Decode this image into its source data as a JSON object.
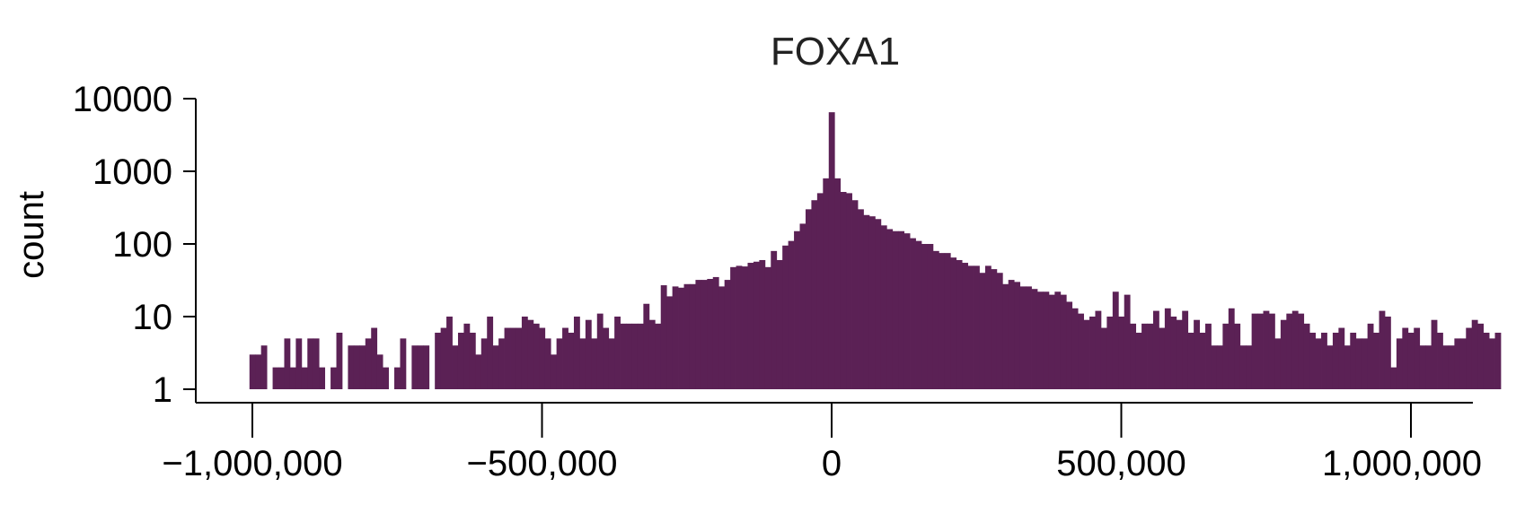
{
  "chart_data": {
    "type": "bar",
    "title": "FOXA1",
    "xlabel": "",
    "ylabel": "count",
    "y_scale": "log",
    "ylim": [
      1,
      10000
    ],
    "xlim": [
      -1000000,
      1000000
    ],
    "bin_width": 10000,
    "grid": false,
    "legend": "none",
    "bar_color": "#5b2155",
    "x_ticks": [
      -1000000,
      -500000,
      0,
      500000,
      1000000
    ],
    "x_tick_labels": [
      "−1,000,000",
      "−500,000",
      "0",
      "500,000",
      "1,000,000"
    ],
    "y_ticks": [
      1,
      10,
      100,
      1000,
      10000
    ],
    "y_tick_labels": [
      "1",
      "10",
      "100",
      "1000",
      "10000"
    ],
    "bins": [
      [
        -1000000,
        3
      ],
      [
        -990000,
        3
      ],
      [
        -980000,
        4
      ],
      [
        -960000,
        2
      ],
      [
        -950000,
        2
      ],
      [
        -940000,
        5
      ],
      [
        -930000,
        2
      ],
      [
        -920000,
        5
      ],
      [
        -910000,
        2
      ],
      [
        -900000,
        5
      ],
      [
        -890000,
        5
      ],
      [
        -880000,
        2
      ],
      [
        -860000,
        2
      ],
      [
        -850000,
        6
      ],
      [
        -830000,
        4
      ],
      [
        -820000,
        4
      ],
      [
        -810000,
        4
      ],
      [
        -800000,
        5
      ],
      [
        -790000,
        7
      ],
      [
        -780000,
        3
      ],
      [
        -770000,
        2
      ],
      [
        -750000,
        2
      ],
      [
        -740000,
        5
      ],
      [
        -720000,
        4
      ],
      [
        -710000,
        4
      ],
      [
        -700000,
        4
      ],
      [
        -680000,
        6
      ],
      [
        -670000,
        7
      ],
      [
        -660000,
        10
      ],
      [
        -650000,
        4
      ],
      [
        -640000,
        6
      ],
      [
        -630000,
        8
      ],
      [
        -620000,
        6
      ],
      [
        -610000,
        3
      ],
      [
        -600000,
        5
      ],
      [
        -590000,
        10
      ],
      [
        -580000,
        4
      ],
      [
        -570000,
        5
      ],
      [
        -560000,
        7
      ],
      [
        -550000,
        7
      ],
      [
        -540000,
        7
      ],
      [
        -530000,
        10
      ],
      [
        -520000,
        9
      ],
      [
        -510000,
        8
      ],
      [
        -500000,
        7
      ],
      [
        -490000,
        5
      ],
      [
        -480000,
        3
      ],
      [
        -470000,
        5
      ],
      [
        -460000,
        7
      ],
      [
        -450000,
        6
      ],
      [
        -440000,
        10
      ],
      [
        -430000,
        5
      ],
      [
        -420000,
        9
      ],
      [
        -410000,
        5
      ],
      [
        -400000,
        11
      ],
      [
        -390000,
        7
      ],
      [
        -380000,
        5
      ],
      [
        -370000,
        10
      ],
      [
        -360000,
        8
      ],
      [
        -350000,
        8
      ],
      [
        -340000,
        8
      ],
      [
        -330000,
        8
      ],
      [
        -320000,
        15
      ],
      [
        -310000,
        9
      ],
      [
        -300000,
        8
      ],
      [
        -290000,
        27
      ],
      [
        -280000,
        19
      ],
      [
        -270000,
        26
      ],
      [
        -260000,
        25
      ],
      [
        -250000,
        28
      ],
      [
        -240000,
        28
      ],
      [
        -230000,
        32
      ],
      [
        -220000,
        32
      ],
      [
        -210000,
        33
      ],
      [
        -200000,
        35
      ],
      [
        -190000,
        26
      ],
      [
        -180000,
        32
      ],
      [
        -170000,
        48
      ],
      [
        -160000,
        50
      ],
      [
        -150000,
        49
      ],
      [
        -140000,
        55
      ],
      [
        -130000,
        57
      ],
      [
        -120000,
        60
      ],
      [
        -110000,
        48
      ],
      [
        -100000,
        80
      ],
      [
        -90000,
        60
      ],
      [
        -80000,
        95
      ],
      [
        -70000,
        110
      ],
      [
        -60000,
        150
      ],
      [
        -50000,
        190
      ],
      [
        -40000,
        300
      ],
      [
        -30000,
        400
      ],
      [
        -20000,
        500
      ],
      [
        -10000,
        800
      ],
      [
        0,
        6500
      ],
      [
        10000,
        800
      ],
      [
        20000,
        520
      ],
      [
        30000,
        500
      ],
      [
        40000,
        400
      ],
      [
        50000,
        300
      ],
      [
        60000,
        250
      ],
      [
        70000,
        240
      ],
      [
        80000,
        220
      ],
      [
        90000,
        180
      ],
      [
        100000,
        160
      ],
      [
        110000,
        150
      ],
      [
        120000,
        150
      ],
      [
        130000,
        140
      ],
      [
        140000,
        120
      ],
      [
        150000,
        110
      ],
      [
        160000,
        100
      ],
      [
        170000,
        100
      ],
      [
        180000,
        80
      ],
      [
        190000,
        75
      ],
      [
        200000,
        75
      ],
      [
        210000,
        65
      ],
      [
        220000,
        60
      ],
      [
        230000,
        55
      ],
      [
        240000,
        50
      ],
      [
        250000,
        50
      ],
      [
        260000,
        40
      ],
      [
        270000,
        50
      ],
      [
        280000,
        45
      ],
      [
        290000,
        40
      ],
      [
        300000,
        28
      ],
      [
        310000,
        32
      ],
      [
        320000,
        30
      ],
      [
        330000,
        26
      ],
      [
        340000,
        26
      ],
      [
        350000,
        24
      ],
      [
        360000,
        22
      ],
      [
        370000,
        22
      ],
      [
        380000,
        20
      ],
      [
        390000,
        22
      ],
      [
        400000,
        20
      ],
      [
        410000,
        16
      ],
      [
        420000,
        13
      ],
      [
        430000,
        11
      ],
      [
        440000,
        9
      ],
      [
        450000,
        10
      ],
      [
        460000,
        12
      ],
      [
        470000,
        7
      ],
      [
        480000,
        10
      ],
      [
        490000,
        22
      ],
      [
        500000,
        10
      ],
      [
        510000,
        20
      ],
      [
        520000,
        8
      ],
      [
        530000,
        6
      ],
      [
        540000,
        8
      ],
      [
        550000,
        8
      ],
      [
        560000,
        12
      ],
      [
        570000,
        7
      ],
      [
        580000,
        13
      ],
      [
        590000,
        10
      ],
      [
        600000,
        9
      ],
      [
        610000,
        12
      ],
      [
        620000,
        6
      ],
      [
        630000,
        9
      ],
      [
        640000,
        6
      ],
      [
        650000,
        8
      ],
      [
        660000,
        4
      ],
      [
        670000,
        4
      ],
      [
        680000,
        8
      ],
      [
        690000,
        13
      ],
      [
        700000,
        8
      ],
      [
        710000,
        4
      ],
      [
        720000,
        4
      ],
      [
        730000,
        11
      ],
      [
        740000,
        11
      ],
      [
        750000,
        12
      ],
      [
        760000,
        11
      ],
      [
        770000,
        5
      ],
      [
        780000,
        9
      ],
      [
        790000,
        11
      ],
      [
        800000,
        12
      ],
      [
        810000,
        11
      ],
      [
        820000,
        8
      ],
      [
        830000,
        6
      ],
      [
        840000,
        5
      ],
      [
        850000,
        6
      ],
      [
        860000,
        4
      ],
      [
        870000,
        6
      ],
      [
        880000,
        7
      ],
      [
        890000,
        4
      ],
      [
        900000,
        6
      ],
      [
        910000,
        5
      ],
      [
        920000,
        5
      ],
      [
        930000,
        8
      ],
      [
        940000,
        6
      ],
      [
        950000,
        12
      ],
      [
        960000,
        10
      ],
      [
        970000,
        2
      ],
      [
        980000,
        5
      ],
      [
        990000,
        7
      ],
      [
        1000000,
        6
      ],
      [
        1010000,
        7
      ],
      [
        1020000,
        4
      ],
      [
        1030000,
        4
      ],
      [
        1040000,
        9
      ],
      [
        1050000,
        6
      ],
      [
        1060000,
        4
      ],
      [
        1070000,
        4
      ],
      [
        1080000,
        5
      ],
      [
        1090000,
        5
      ],
      [
        1100000,
        7
      ],
      [
        1110000,
        9
      ],
      [
        1120000,
        8
      ],
      [
        1130000,
        6
      ],
      [
        1140000,
        5
      ],
      [
        1150000,
        6
      ]
    ]
  }
}
